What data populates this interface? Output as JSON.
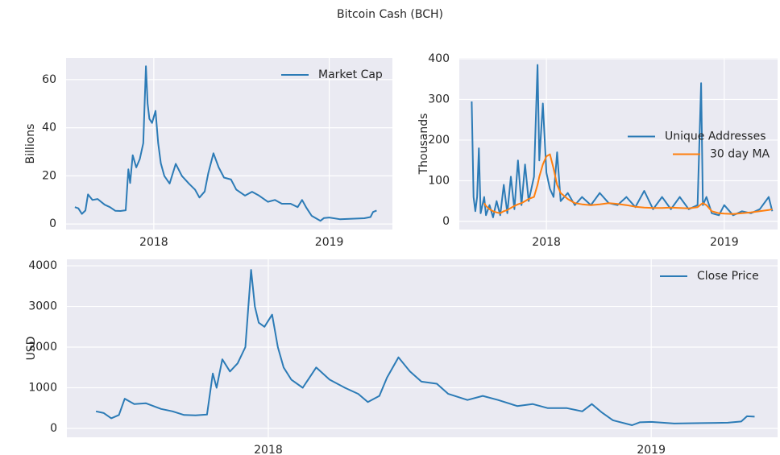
{
  "title": "Bitcoin Cash (BCH)",
  "chart_data": [
    {
      "type": "line",
      "y_label": "Billions",
      "legend": "upper right",
      "grid": true,
      "xlim": [
        2017.5,
        2019.36
      ],
      "xticks": [
        2018,
        2019
      ],
      "ylim": [
        -2.3,
        69
      ],
      "yticks": [
        0,
        20,
        40,
        60
      ],
      "x": [
        2017.55,
        2017.57,
        2017.59,
        2017.61,
        2017.625,
        2017.65,
        2017.68,
        2017.72,
        2017.75,
        2017.78,
        2017.81,
        2017.84,
        2017.855,
        2017.865,
        2017.88,
        2017.9,
        2017.92,
        2017.94,
        2017.955,
        2017.965,
        2017.975,
        2017.99,
        2018.01,
        2018.025,
        2018.04,
        2018.06,
        2018.09,
        2018.125,
        2018.16,
        2018.2,
        2018.235,
        2018.26,
        2018.29,
        2018.31,
        2018.34,
        2018.37,
        2018.4,
        2018.44,
        2018.47,
        2018.52,
        2018.56,
        2018.6,
        2018.65,
        2018.69,
        2018.73,
        2018.78,
        2018.82,
        2018.845,
        2018.87,
        2018.9,
        2018.95,
        2018.97,
        2019.0,
        2019.06,
        2019.13,
        2019.2,
        2019.235,
        2019.25,
        2019.27
      ],
      "series": [
        {
          "name": "Market Cap",
          "color": "#2c7bb6",
          "values": [
            7,
            6.5,
            4.2,
            5.6,
            12.3,
            10,
            10.4,
            8,
            7,
            5.5,
            5.4,
            5.7,
            22.7,
            17,
            28.6,
            23.5,
            27,
            33.6,
            65.6,
            50,
            43.7,
            42,
            47,
            33.6,
            25.2,
            20,
            16.8,
            25,
            20,
            16.8,
            14.3,
            11,
            13.5,
            21,
            29.4,
            23.5,
            19.3,
            18.5,
            14.3,
            11.8,
            13.4,
            11.8,
            9.2,
            10,
            8.4,
            8.4,
            7,
            10,
            6.7,
            3.4,
            1.3,
            2.5,
            2.7,
            2,
            2.2,
            2.4,
            2.9,
            5,
            5.6
          ]
        }
      ]
    },
    {
      "type": "line",
      "y_label": "Thousands",
      "legend": "center right",
      "grid": true,
      "xlim": [
        2017.51,
        2019.3
      ],
      "xticks": [
        2018,
        2019
      ],
      "ylim": [
        -20,
        402
      ],
      "yticks": [
        0,
        100,
        200,
        300,
        400
      ],
      "x": [
        2017.58,
        2017.59,
        2017.6,
        2017.61,
        2017.62,
        2017.63,
        2017.65,
        2017.66,
        2017.68,
        2017.7,
        2017.72,
        2017.74,
        2017.76,
        2017.78,
        2017.8,
        2017.82,
        2017.84,
        2017.86,
        2017.88,
        2017.9,
        2017.93,
        2017.95,
        2017.96,
        2017.98,
        2018.0,
        2018.02,
        2018.04,
        2018.06,
        2018.08,
        2018.12,
        2018.16,
        2018.2,
        2018.25,
        2018.3,
        2018.35,
        2018.4,
        2018.45,
        2018.5,
        2018.55,
        2018.6,
        2018.65,
        2018.7,
        2018.75,
        2018.8,
        2018.85,
        2018.87,
        2018.88,
        2018.9,
        2018.93,
        2018.97,
        2019.0,
        2019.05,
        2019.1,
        2019.15,
        2019.2,
        2019.25,
        2019.27
      ],
      "series": [
        {
          "name": "Unique Addresses",
          "color": "#2c7bb6",
          "values": [
            295,
            60,
            25,
            60,
            180,
            20,
            60,
            15,
            40,
            10,
            50,
            15,
            90,
            20,
            110,
            30,
            150,
            40,
            140,
            50,
            110,
            385,
            150,
            290,
            120,
            80,
            60,
            170,
            50,
            70,
            40,
            60,
            40,
            70,
            45,
            40,
            60,
            35,
            75,
            30,
            60,
            30,
            60,
            30,
            40,
            340,
            40,
            60,
            20,
            15,
            40,
            15,
            25,
            20,
            30,
            60,
            25
          ]
        },
        {
          "name": "30 day MA",
          "color": "#ff7f0e",
          "values": [
            null,
            null,
            null,
            null,
            null,
            null,
            45,
            38,
            30,
            25,
            22,
            20,
            25,
            28,
            33,
            38,
            42,
            45,
            50,
            55,
            60,
            90,
            110,
            140,
            160,
            165,
            130,
            90,
            70,
            55,
            45,
            42,
            40,
            42,
            45,
            43,
            40,
            36,
            34,
            33,
            33,
            34,
            33,
            32,
            35,
            42,
            45,
            40,
            25,
            20,
            19,
            18,
            20,
            22,
            25,
            28,
            30
          ]
        }
      ]
    },
    {
      "type": "line",
      "y_label": "USD",
      "legend": "upper right",
      "grid": true,
      "xlim": [
        2017.474,
        2019.33
      ],
      "xticks": [
        2018,
        2019
      ],
      "ylim": [
        -218,
        4160
      ],
      "yticks": [
        0,
        1000,
        2000,
        3000,
        4000
      ],
      "x": [
        2017.55,
        2017.57,
        2017.59,
        2017.61,
        2017.625,
        2017.65,
        2017.68,
        2017.72,
        2017.75,
        2017.78,
        2017.81,
        2017.84,
        2017.855,
        2017.865,
        2017.88,
        2017.9,
        2017.92,
        2017.94,
        2017.955,
        2017.965,
        2017.975,
        2017.99,
        2018.01,
        2018.025,
        2018.04,
        2018.06,
        2018.09,
        2018.125,
        2018.16,
        2018.2,
        2018.235,
        2018.26,
        2018.29,
        2018.31,
        2018.34,
        2018.37,
        2018.4,
        2018.44,
        2018.47,
        2018.52,
        2018.56,
        2018.6,
        2018.65,
        2018.69,
        2018.73,
        2018.78,
        2018.82,
        2018.845,
        2018.87,
        2018.9,
        2018.95,
        2018.97,
        2019.0,
        2019.06,
        2019.13,
        2019.2,
        2019.235,
        2019.25,
        2019.27
      ],
      "series": [
        {
          "name": "Close Price",
          "color": "#2c7bb6",
          "values": [
            420,
            380,
            250,
            330,
            730,
            600,
            620,
            480,
            420,
            330,
            320,
            340,
            1350,
            1000,
            1700,
            1400,
            1600,
            2000,
            3900,
            3000,
            2600,
            2500,
            2800,
            2000,
            1500,
            1200,
            1000,
            1500,
            1200,
            1000,
            850,
            650,
            800,
            1250,
            1750,
            1400,
            1150,
            1100,
            850,
            700,
            800,
            700,
            550,
            600,
            500,
            500,
            420,
            600,
            400,
            200,
            80,
            150,
            160,
            120,
            130,
            140,
            170,
            300,
            290
          ]
        }
      ]
    }
  ]
}
